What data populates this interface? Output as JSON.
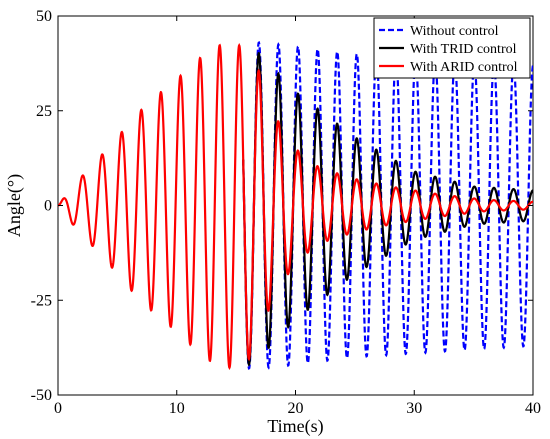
{
  "chart_data": {
    "type": "line",
    "xlabel": "Time(s)",
    "ylabel": "Angle(°)",
    "xlim": [
      0,
      40
    ],
    "ylim": [
      -50,
      50
    ],
    "xticks": [
      0,
      10,
      20,
      30,
      40
    ],
    "yticks": [
      -50,
      -25,
      0,
      25,
      50
    ],
    "xtick_labels": [
      "0",
      "10",
      "20",
      "30",
      "40"
    ],
    "ytick_labels": [
      "-50",
      "-25",
      "0",
      "25",
      "50"
    ],
    "grid": false,
    "legend_position": "top-right",
    "oscillation_period_s": 1.65,
    "series": [
      {
        "name": "Without control",
        "color": "#0000ff",
        "dash": "dashed",
        "starts_at_s": 15.6,
        "envelope": {
          "t": [
            15.6,
            17,
            20,
            25,
            30,
            35,
            40
          ],
          "amplitude": [
            43,
            43,
            42,
            40,
            39,
            38,
            37
          ]
        }
      },
      {
        "name": "With TRID control",
        "color": "#000000",
        "dash": "solid",
        "starts_at_s": 15.6,
        "envelope": {
          "t": [
            15.6,
            17,
            20,
            25,
            30,
            35,
            40
          ],
          "amplitude": [
            43,
            40,
            30,
            18,
            9,
            5,
            4
          ]
        }
      },
      {
        "name": "With ARID control",
        "color": "#ff0000",
        "dash": "solid",
        "envelope": {
          "t": [
            0,
            1.5,
            3.3,
            5,
            6.6,
            8.3,
            9.9,
            11.6,
            13.2,
            14.8,
            16,
            17,
            18,
            20,
            22,
            25,
            28,
            32,
            36,
            40
          ],
          "amplitude": [
            0,
            6,
            12,
            18,
            24,
            29,
            33,
            38,
            42,
            43,
            41,
            35,
            25,
            15,
            10,
            7,
            5,
            3,
            1.5,
            1
          ]
        }
      }
    ]
  }
}
